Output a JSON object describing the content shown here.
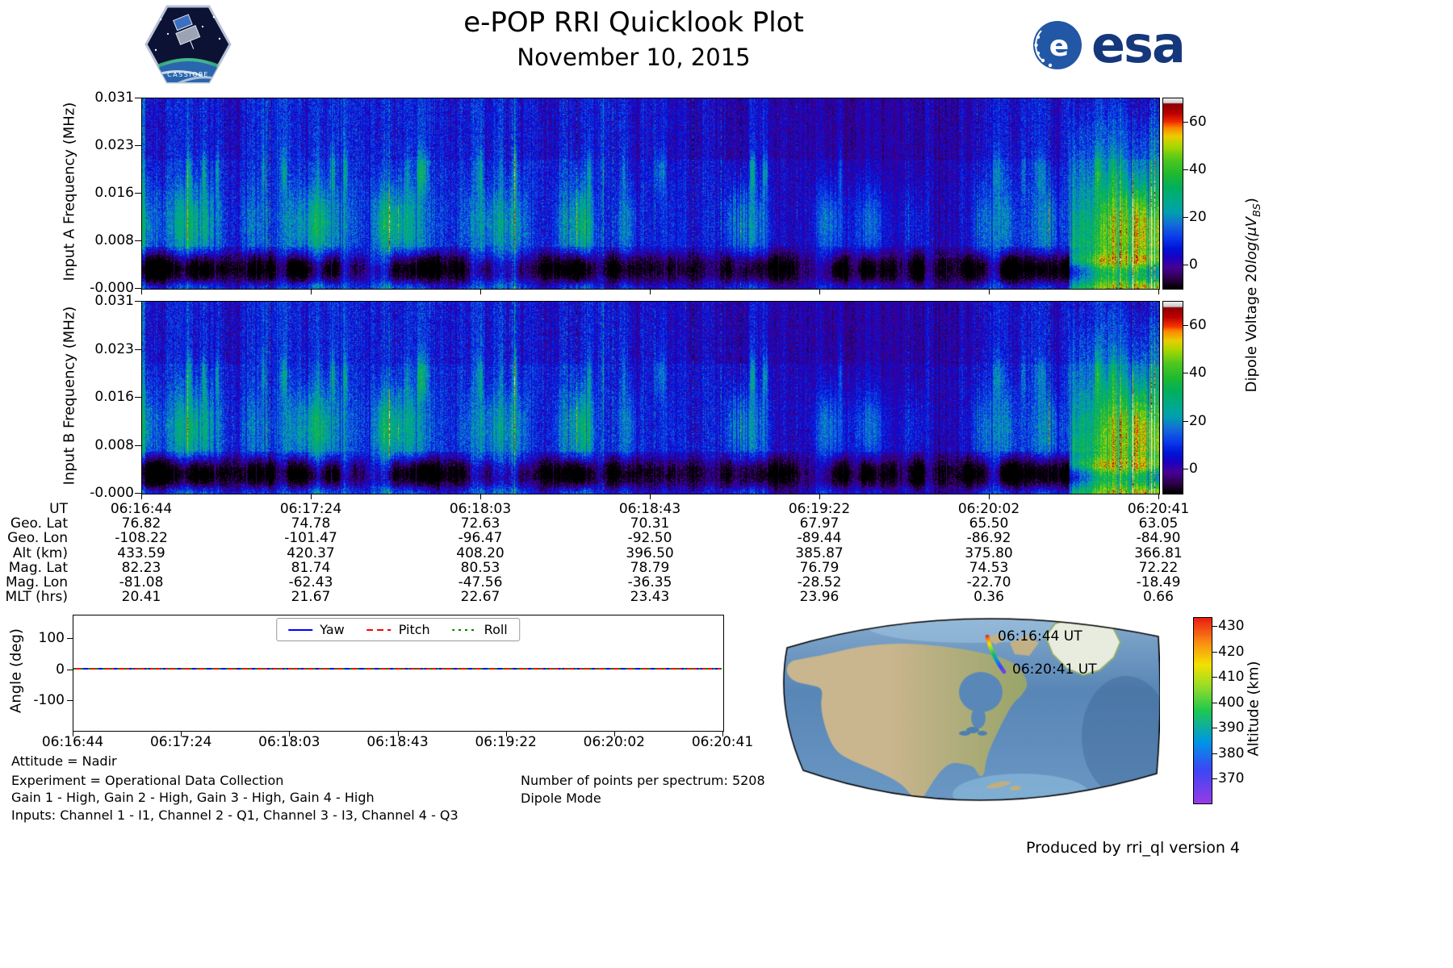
{
  "header": {
    "title": "e-POP RRI Quicklook Plot",
    "subtitle": "November 10, 2015",
    "mission_patch": "CASSIOPE",
    "esa_logo_text": "esa"
  },
  "spectrograms": {
    "colorbar_label": {
      "prefix": "Dipole Voltage 20",
      "func": "log",
      "open": "(μV",
      "sub": "BS",
      "close": ")"
    },
    "colorbar_ticks": [
      "60",
      "40",
      "20",
      "0"
    ],
    "input_a": {
      "ylabel": "Input A Frequency (MHz)",
      "yticks": [
        "0.031",
        "0.023",
        "0.016",
        "0.008",
        "-0.000"
      ]
    },
    "input_b": {
      "ylabel": "Input B Frequency (MHz)",
      "yticks": [
        "0.031",
        "0.023",
        "0.016",
        "0.008",
        "-0.000"
      ]
    }
  },
  "ephemeris": {
    "rows": [
      {
        "label": "UT",
        "values": [
          "06:16:44",
          "06:17:24",
          "06:18:03",
          "06:18:43",
          "06:19:22",
          "06:20:02",
          "06:20:41"
        ]
      },
      {
        "label": "Geo. Lat",
        "values": [
          "76.82",
          "74.78",
          "72.63",
          "70.31",
          "67.97",
          "65.50",
          "63.05"
        ]
      },
      {
        "label": "Geo. Lon",
        "values": [
          "-108.22",
          "-101.47",
          "-96.47",
          "-92.50",
          "-89.44",
          "-86.92",
          "-84.90"
        ]
      },
      {
        "label": "Alt (km)",
        "values": [
          "433.59",
          "420.37",
          "408.20",
          "396.50",
          "385.87",
          "375.80",
          "366.81"
        ]
      },
      {
        "label": "Mag. Lat",
        "values": [
          "82.23",
          "81.74",
          "80.53",
          "78.79",
          "76.79",
          "74.53",
          "72.22"
        ]
      },
      {
        "label": "Mag. Lon",
        "values": [
          "-81.08",
          "-62.43",
          "-47.56",
          "-36.35",
          "-28.52",
          "-22.70",
          "-18.49"
        ]
      },
      {
        "label": "MLT (hrs)",
        "values": [
          "20.41",
          "21.67",
          "22.67",
          "23.43",
          "23.96",
          "0.36",
          "0.66"
        ]
      }
    ]
  },
  "angle_plot": {
    "ylabel": "Angle (deg)",
    "yticks": [
      "100",
      "0",
      "-100"
    ],
    "xticks": [
      "06:16:44",
      "06:17:24",
      "06:18:03",
      "06:18:43",
      "06:19:22",
      "06:20:02",
      "06:20:41"
    ],
    "legend": [
      {
        "label": "Yaw",
        "color": "#0000ff",
        "style": "solid"
      },
      {
        "label": "Pitch",
        "color": "#ff0000",
        "style": "dashed"
      },
      {
        "label": "Roll",
        "color": "#008000",
        "style": "dotted"
      }
    ]
  },
  "map": {
    "start_label": "06:16:44 UT",
    "end_label": "06:20:41 UT",
    "colorbar_label": "Altitude (km)",
    "colorbar_ticks": [
      "430",
      "420",
      "410",
      "400",
      "390",
      "380",
      "370"
    ]
  },
  "footer": {
    "attitude": "Attitude = Nadir",
    "experiment": "Experiment = Operational Data Collection",
    "gains": "Gain 1 - High, Gain 2 - High, Gain 3 - High, Gain 4 - High",
    "inputs": "Inputs: Channel 1 - I1, Channel 2 - Q1, Channel 3 - I3, Channel 4 - Q3",
    "points": "Number of points per spectrum: 5208",
    "mode": "Dipole Mode",
    "produced": "Produced by rri_ql version 4"
  },
  "chart_data": [
    {
      "type": "heatmap",
      "name": "Input A spectrogram",
      "ylabel": "Input A Frequency (MHz)",
      "xlabel": "UT",
      "x_ticks": [
        "06:16:44",
        "06:17:24",
        "06:18:03",
        "06:18:43",
        "06:19:22",
        "06:20:02",
        "06:20:41"
      ],
      "y_ticks_mhz": [
        0.0,
        0.008,
        0.016,
        0.023,
        0.031
      ],
      "ylim_mhz": [
        0.0,
        0.031
      ],
      "colormap": "nipy_spectral",
      "value_range": [
        -10,
        70
      ],
      "colorbar": {
        "label": "Dipole Voltage 20log(μV_BS)",
        "ticks": [
          0,
          20,
          40,
          60
        ]
      },
      "description": "Broadband blue noise (~5-20 dB) with vertical striations; green enhancements (~25-40 dB) below 0.016 MHz in patches; dark band near 0.002-0.005 MHz; dimmer region ~06:19:10-06:20:10; strong green emission block with bright yellow line near 0.005 MHz after ~06:20:25"
    },
    {
      "type": "heatmap",
      "name": "Input B spectrogram",
      "ylabel": "Input B Frequency (MHz)",
      "xlabel": "UT",
      "x_ticks": [
        "06:16:44",
        "06:17:24",
        "06:18:03",
        "06:18:43",
        "06:19:22",
        "06:20:02",
        "06:20:41"
      ],
      "y_ticks_mhz": [
        0.0,
        0.008,
        0.016,
        0.023,
        0.031
      ],
      "ylim_mhz": [
        0.0,
        0.031
      ],
      "colormap": "nipy_spectral",
      "value_range": [
        -10,
        70
      ],
      "colorbar": {
        "label": "Dipole Voltage 20log(μV_BS)",
        "ticks": [
          0,
          20,
          40,
          60
        ]
      },
      "description": "Same structure as Input A"
    },
    {
      "type": "table",
      "name": "ephemeris",
      "row_labels": [
        "UT",
        "Geo. Lat",
        "Geo. Lon",
        "Alt (km)",
        "Mag. Lat",
        "Mag. Lon",
        "MLT (hrs)"
      ],
      "columns": [
        [
          "06:16:44",
          76.82,
          -108.22,
          433.59,
          82.23,
          -81.08,
          20.41
        ],
        [
          "06:17:24",
          74.78,
          -101.47,
          420.37,
          81.74,
          -62.43,
          21.67
        ],
        [
          "06:18:03",
          72.63,
          -96.47,
          408.2,
          80.53,
          -47.56,
          22.67
        ],
        [
          "06:18:43",
          70.31,
          -92.5,
          396.5,
          78.79,
          -36.35,
          23.43
        ],
        [
          "06:19:22",
          67.97,
          -89.44,
          385.87,
          76.79,
          -28.52,
          23.96
        ],
        [
          "06:20:02",
          65.5,
          -86.92,
          375.8,
          74.53,
          -22.7,
          0.36
        ],
        [
          "06:20:41",
          63.05,
          -84.9,
          366.81,
          72.22,
          -18.49,
          0.66
        ]
      ]
    },
    {
      "type": "line",
      "name": "attitude angles",
      "ylabel": "Angle (deg)",
      "x": [
        "06:16:44",
        "06:17:24",
        "06:18:03",
        "06:18:43",
        "06:19:22",
        "06:20:02",
        "06:20:41"
      ],
      "series": [
        {
          "name": "Yaw",
          "color": "#0000ff",
          "linestyle": "solid",
          "values": [
            0,
            0,
            0,
            0,
            0,
            0,
            0
          ]
        },
        {
          "name": "Pitch",
          "color": "#ff0000",
          "linestyle": "dashed",
          "values": [
            0,
            0,
            0,
            0,
            0,
            0,
            0
          ]
        },
        {
          "name": "Roll",
          "color": "#008000",
          "linestyle": "dotted",
          "values": [
            0,
            0,
            0,
            0,
            0,
            0,
            0
          ]
        }
      ],
      "yticks": [
        -100,
        0,
        100
      ],
      "ylim": [
        -175,
        175
      ],
      "legend_position": "upper center"
    },
    {
      "type": "map",
      "name": "ground track",
      "region": "North America",
      "track": {
        "ut": [
          "06:16:44",
          "06:17:24",
          "06:18:03",
          "06:18:43",
          "06:19:22",
          "06:20:02",
          "06:20:41"
        ],
        "geo_lat": [
          76.82,
          74.78,
          72.63,
          70.31,
          67.97,
          65.5,
          63.05
        ],
        "geo_lon": [
          -108.22,
          -101.47,
          -96.47,
          -92.5,
          -89.44,
          -86.92,
          -84.9
        ],
        "alt_km": [
          433.59,
          420.37,
          408.2,
          396.5,
          385.87,
          375.8,
          366.81
        ]
      },
      "annotations": [
        "06:16:44 UT",
        "06:20:41 UT"
      ],
      "colorbar": {
        "label": "Altitude (km)",
        "ticks": [
          370,
          380,
          390,
          400,
          410,
          420,
          430
        ],
        "colormap": "rainbow"
      }
    }
  ]
}
